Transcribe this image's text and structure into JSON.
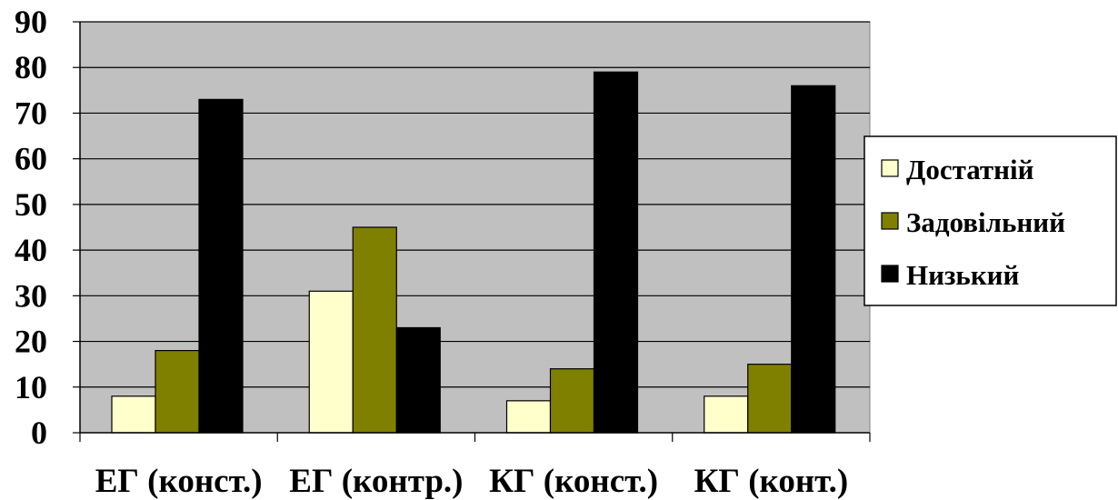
{
  "chart_data": {
    "type": "bar",
    "categories": [
      "ЕГ (конст.)",
      "ЕГ (контр.)",
      "КГ (конст.)",
      "КГ (конт.)"
    ],
    "series": [
      {
        "name": "Достатній",
        "values": [
          8,
          31,
          7,
          8
        ],
        "color": "#ffffcc"
      },
      {
        "name": "Задовільний",
        "values": [
          18,
          45,
          14,
          15
        ],
        "color": "#808000"
      },
      {
        "name": "Низький",
        "values": [
          73,
          23,
          79,
          76
        ],
        "color": "#000000"
      }
    ],
    "y_ticks": [
      "0",
      "10",
      "20",
      "30",
      "40",
      "50",
      "60",
      "70",
      "80",
      "90"
    ],
    "ylim": [
      0,
      90
    ],
    "grid": true,
    "plot_background": "#c0c0c0",
    "legend_position": "right",
    "title": "",
    "xlabel": "",
    "ylabel": ""
  }
}
